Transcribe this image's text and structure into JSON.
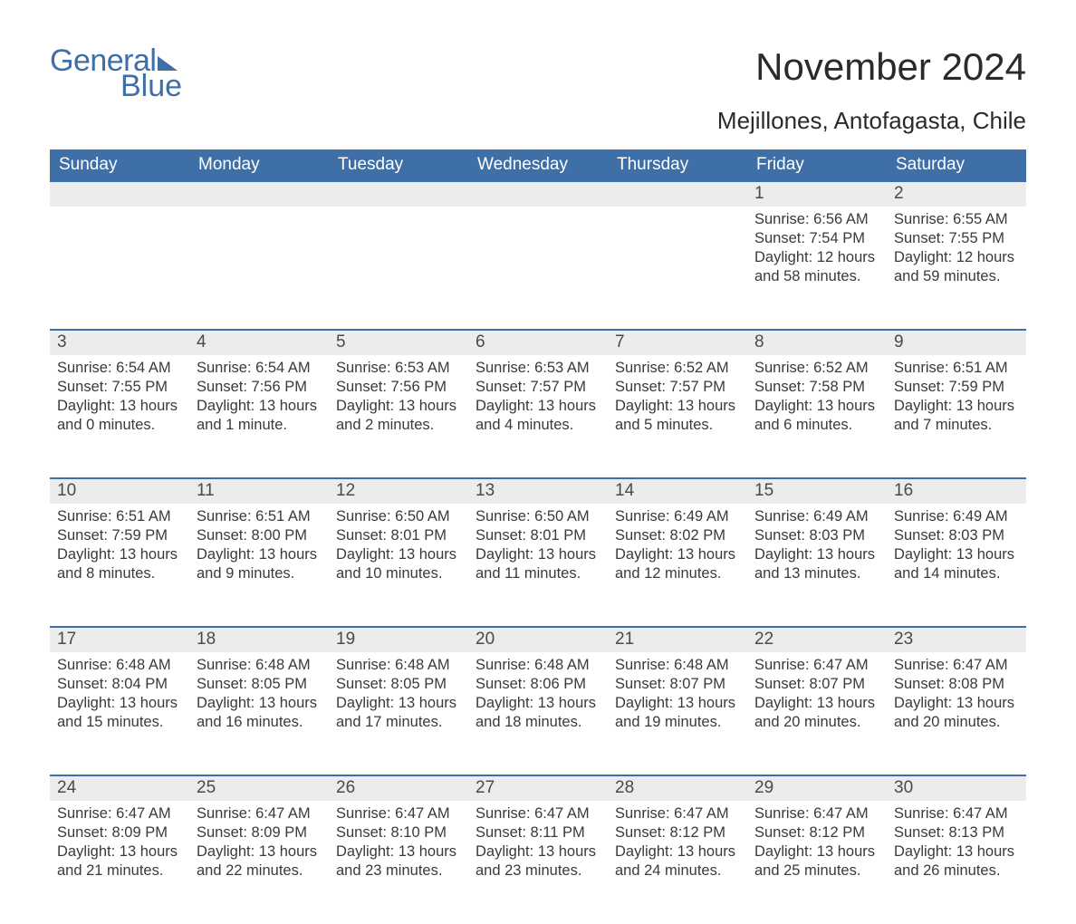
{
  "logo": {
    "text_general": "General",
    "text_blue": "Blue"
  },
  "title": "November 2024",
  "location": "Mejillones, Antofagasta, Chile",
  "colors": {
    "header_bg": "#3e6fa6",
    "header_text": "#ffffff",
    "daynum_bg": "#ececec",
    "divider": "#3e6fa6",
    "body_text": "#3a3a3a",
    "title_text": "#2a2a2a",
    "logo_color": "#3e6fa6",
    "page_bg": "#ffffff"
  },
  "typography": {
    "title_fontsize": 42,
    "location_fontsize": 26,
    "weekday_fontsize": 19,
    "daynum_fontsize": 19,
    "cell_fontsize": 16.5,
    "font_family": "Arial"
  },
  "weekdays": [
    "Sunday",
    "Monday",
    "Tuesday",
    "Wednesday",
    "Thursday",
    "Friday",
    "Saturday"
  ],
  "weeks": [
    [
      null,
      null,
      null,
      null,
      null,
      {
        "n": "1",
        "sr": "Sunrise: 6:56 AM",
        "ss": "Sunset: 7:54 PM",
        "dl": "Daylight: 12 hours and 58 minutes."
      },
      {
        "n": "2",
        "sr": "Sunrise: 6:55 AM",
        "ss": "Sunset: 7:55 PM",
        "dl": "Daylight: 12 hours and 59 minutes."
      }
    ],
    [
      {
        "n": "3",
        "sr": "Sunrise: 6:54 AM",
        "ss": "Sunset: 7:55 PM",
        "dl": "Daylight: 13 hours and 0 minutes."
      },
      {
        "n": "4",
        "sr": "Sunrise: 6:54 AM",
        "ss": "Sunset: 7:56 PM",
        "dl": "Daylight: 13 hours and 1 minute."
      },
      {
        "n": "5",
        "sr": "Sunrise: 6:53 AM",
        "ss": "Sunset: 7:56 PM",
        "dl": "Daylight: 13 hours and 2 minutes."
      },
      {
        "n": "6",
        "sr": "Sunrise: 6:53 AM",
        "ss": "Sunset: 7:57 PM",
        "dl": "Daylight: 13 hours and 4 minutes."
      },
      {
        "n": "7",
        "sr": "Sunrise: 6:52 AM",
        "ss": "Sunset: 7:57 PM",
        "dl": "Daylight: 13 hours and 5 minutes."
      },
      {
        "n": "8",
        "sr": "Sunrise: 6:52 AM",
        "ss": "Sunset: 7:58 PM",
        "dl": "Daylight: 13 hours and 6 minutes."
      },
      {
        "n": "9",
        "sr": "Sunrise: 6:51 AM",
        "ss": "Sunset: 7:59 PM",
        "dl": "Daylight: 13 hours and 7 minutes."
      }
    ],
    [
      {
        "n": "10",
        "sr": "Sunrise: 6:51 AM",
        "ss": "Sunset: 7:59 PM",
        "dl": "Daylight: 13 hours and 8 minutes."
      },
      {
        "n": "11",
        "sr": "Sunrise: 6:51 AM",
        "ss": "Sunset: 8:00 PM",
        "dl": "Daylight: 13 hours and 9 minutes."
      },
      {
        "n": "12",
        "sr": "Sunrise: 6:50 AM",
        "ss": "Sunset: 8:01 PM",
        "dl": "Daylight: 13 hours and 10 minutes."
      },
      {
        "n": "13",
        "sr": "Sunrise: 6:50 AM",
        "ss": "Sunset: 8:01 PM",
        "dl": "Daylight: 13 hours and 11 minutes."
      },
      {
        "n": "14",
        "sr": "Sunrise: 6:49 AM",
        "ss": "Sunset: 8:02 PM",
        "dl": "Daylight: 13 hours and 12 minutes."
      },
      {
        "n": "15",
        "sr": "Sunrise: 6:49 AM",
        "ss": "Sunset: 8:03 PM",
        "dl": "Daylight: 13 hours and 13 minutes."
      },
      {
        "n": "16",
        "sr": "Sunrise: 6:49 AM",
        "ss": "Sunset: 8:03 PM",
        "dl": "Daylight: 13 hours and 14 minutes."
      }
    ],
    [
      {
        "n": "17",
        "sr": "Sunrise: 6:48 AM",
        "ss": "Sunset: 8:04 PM",
        "dl": "Daylight: 13 hours and 15 minutes."
      },
      {
        "n": "18",
        "sr": "Sunrise: 6:48 AM",
        "ss": "Sunset: 8:05 PM",
        "dl": "Daylight: 13 hours and 16 minutes."
      },
      {
        "n": "19",
        "sr": "Sunrise: 6:48 AM",
        "ss": "Sunset: 8:05 PM",
        "dl": "Daylight: 13 hours and 17 minutes."
      },
      {
        "n": "20",
        "sr": "Sunrise: 6:48 AM",
        "ss": "Sunset: 8:06 PM",
        "dl": "Daylight: 13 hours and 18 minutes."
      },
      {
        "n": "21",
        "sr": "Sunrise: 6:48 AM",
        "ss": "Sunset: 8:07 PM",
        "dl": "Daylight: 13 hours and 19 minutes."
      },
      {
        "n": "22",
        "sr": "Sunrise: 6:47 AM",
        "ss": "Sunset: 8:07 PM",
        "dl": "Daylight: 13 hours and 20 minutes."
      },
      {
        "n": "23",
        "sr": "Sunrise: 6:47 AM",
        "ss": "Sunset: 8:08 PM",
        "dl": "Daylight: 13 hours and 20 minutes."
      }
    ],
    [
      {
        "n": "24",
        "sr": "Sunrise: 6:47 AM",
        "ss": "Sunset: 8:09 PM",
        "dl": "Daylight: 13 hours and 21 minutes."
      },
      {
        "n": "25",
        "sr": "Sunrise: 6:47 AM",
        "ss": "Sunset: 8:09 PM",
        "dl": "Daylight: 13 hours and 22 minutes."
      },
      {
        "n": "26",
        "sr": "Sunrise: 6:47 AM",
        "ss": "Sunset: 8:10 PM",
        "dl": "Daylight: 13 hours and 23 minutes."
      },
      {
        "n": "27",
        "sr": "Sunrise: 6:47 AM",
        "ss": "Sunset: 8:11 PM",
        "dl": "Daylight: 13 hours and 23 minutes."
      },
      {
        "n": "28",
        "sr": "Sunrise: 6:47 AM",
        "ss": "Sunset: 8:12 PM",
        "dl": "Daylight: 13 hours and 24 minutes."
      },
      {
        "n": "29",
        "sr": "Sunrise: 6:47 AM",
        "ss": "Sunset: 8:12 PM",
        "dl": "Daylight: 13 hours and 25 minutes."
      },
      {
        "n": "30",
        "sr": "Sunrise: 6:47 AM",
        "ss": "Sunset: 8:13 PM",
        "dl": "Daylight: 13 hours and 26 minutes."
      }
    ]
  ]
}
